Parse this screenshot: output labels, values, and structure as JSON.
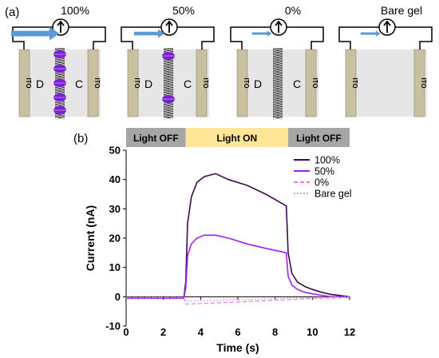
{
  "panel_a": {
    "label": "(a)",
    "cells": [
      {
        "title": "100%",
        "left_electrode": "ITO",
        "right_electrode": "ITO",
        "left_label": "D",
        "right_label": "C",
        "arrow_level": 1.0,
        "membrane": "purple-dots"
      },
      {
        "title": "50%",
        "left_electrode": "ITO",
        "right_electrode": "ITO",
        "left_label": "D",
        "right_label": "C",
        "arrow_level": 0.5,
        "membrane": "purple-dots-sparse"
      },
      {
        "title": "0%",
        "left_electrode": "ITO",
        "right_electrode": "ITO",
        "left_label": "D",
        "right_label": "C",
        "arrow_level": 0.2,
        "membrane": "plain"
      },
      {
        "title": "Bare gel",
        "left_electrode": "ITO",
        "right_electrode": "ITO",
        "left_label": "",
        "right_label": "",
        "arrow_level": 0.2,
        "membrane": "none"
      }
    ],
    "colors": {
      "electrode": "#c9c0a0",
      "cell_bg": "#e6e6e6",
      "arrow": "#5b9bd5",
      "purple": "#7b1fd6"
    }
  },
  "panel_b_label": "(b)",
  "chart_data": {
    "type": "line",
    "xlabel": "Time (s)",
    "ylabel": "Current (nA)",
    "xlim": [
      0,
      12
    ],
    "ylim": [
      -10,
      50
    ],
    "xticks": [
      0,
      2,
      4,
      6,
      8,
      10,
      12
    ],
    "yticks": [
      -10,
      0,
      10,
      20,
      30,
      40,
      50
    ],
    "grid": false,
    "legend_position": "top-right",
    "light_bands": [
      {
        "label": "Light OFF",
        "x0": 0,
        "x1": 3.2,
        "color": "#a6a6a6"
      },
      {
        "label": "Light ON",
        "x0": 3.2,
        "x1": 8.7,
        "color": "#ffe699"
      },
      {
        "label": "Light OFF",
        "x0": 8.7,
        "x1": 12,
        "color": "#a6a6a6"
      }
    ],
    "series": [
      {
        "name": "100%",
        "color": "#3d0a4f",
        "style": "solid",
        "x": [
          0,
          3.1,
          3.2,
          3.3,
          3.5,
          3.8,
          4.2,
          4.8,
          5.5,
          6.5,
          7.5,
          8.6,
          8.7,
          8.9,
          9.2,
          9.6,
          10.0,
          10.5,
          11.0,
          12.0
        ],
        "y": [
          -0.5,
          -0.5,
          5,
          25,
          34,
          39,
          41,
          42,
          40,
          38,
          35,
          31,
          15,
          8,
          5,
          3.5,
          2.5,
          1.5,
          0.8,
          0
        ]
      },
      {
        "name": "50%",
        "color": "#a020f0",
        "style": "solid",
        "x": [
          0,
          3.1,
          3.2,
          3.3,
          3.5,
          3.8,
          4.2,
          4.8,
          5.5,
          6.5,
          7.5,
          8.6,
          8.7,
          8.9,
          9.2,
          9.6,
          10.0,
          10.5,
          11.0,
          12.0
        ],
        "y": [
          -0.5,
          -0.5,
          3,
          14,
          18,
          20,
          21,
          21,
          20,
          18,
          16.5,
          15,
          7,
          4,
          2.5,
          1.5,
          1,
          0.5,
          0,
          0
        ]
      },
      {
        "name": "0%",
        "color": "#e07be8",
        "style": "dashed",
        "x": [
          0,
          3.1,
          3.2,
          4,
          6,
          8,
          8.7,
          10,
          12
        ],
        "y": [
          -0.3,
          -0.3,
          -2.5,
          -2.3,
          -1.8,
          -1.2,
          -1.0,
          -0.6,
          -0.3
        ]
      },
      {
        "name": "Bare gel",
        "color": "#d9a0e0",
        "style": "dotted",
        "x": [
          0,
          3.1,
          3.2,
          4,
          6,
          8,
          8.7,
          10,
          12
        ],
        "y": [
          -0.2,
          -0.2,
          -1.5,
          -1.4,
          -1.0,
          -0.7,
          -0.5,
          -0.3,
          -0.1
        ]
      }
    ]
  }
}
